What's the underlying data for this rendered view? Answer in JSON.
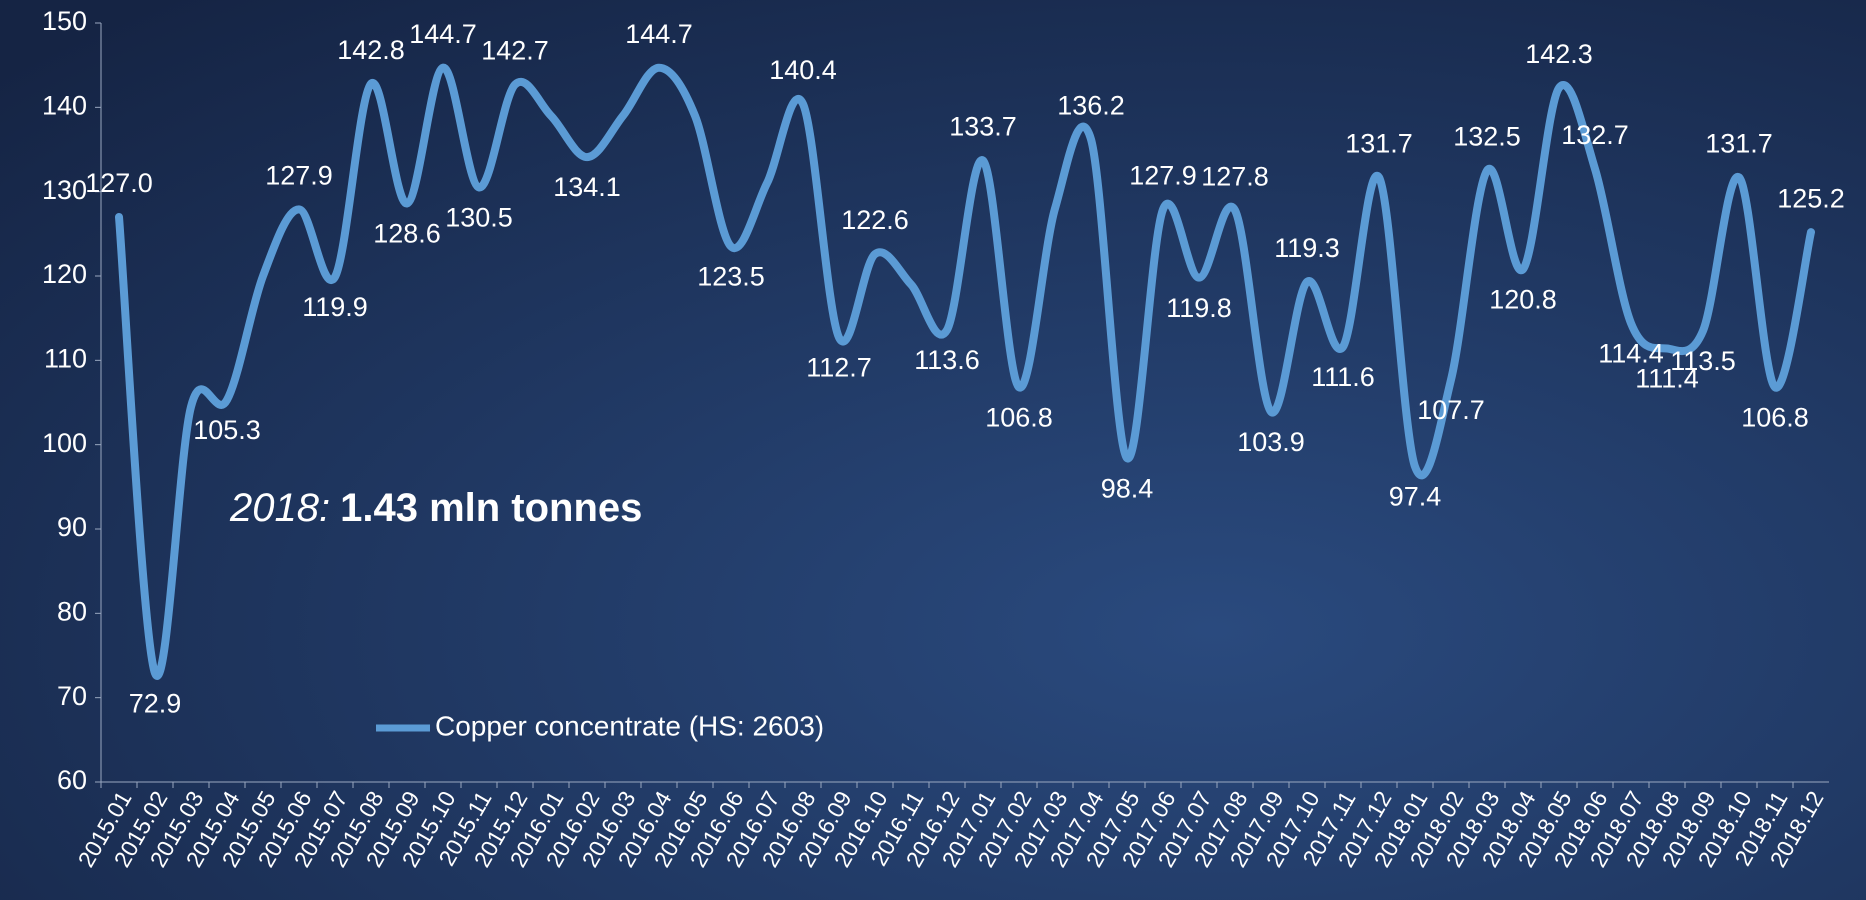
{
  "chart_data": {
    "type": "line",
    "categories": [
      "2015.01",
      "2015.02",
      "2015.03",
      "2015.04",
      "2015.05",
      "2015.06",
      "2015.07",
      "2015.08",
      "2015.09",
      "2015.10",
      "2015.11",
      "2015.12",
      "2016.01",
      "2016.02",
      "2016.03",
      "2016.04",
      "2016.05",
      "2016.06",
      "2016.07",
      "2016.08",
      "2016.09",
      "2016.10",
      "2016.11",
      "2016.12",
      "2017.01",
      "2017.02",
      "2017.03",
      "2017.04",
      "2017.05",
      "2017.06",
      "2017.07",
      "2017.08",
      "2017.09",
      "2017.10",
      "2017.11",
      "2017.12",
      "2018.01",
      "2018.02",
      "2018.03",
      "2018.04",
      "2018.05",
      "2018.06",
      "2018.07",
      "2018.08",
      "2018.09",
      "2018.10",
      "2018.11",
      "2018.12"
    ],
    "series": [
      {
        "name": "Copper concentrate (HS: 2603)",
        "color": "#5b9bd5",
        "values": [
          127.0,
          72.9,
          104.5,
          105.3,
          120,
          127.9,
          119.9,
          142.8,
          128.6,
          144.7,
          130.5,
          142.7,
          139,
          134.1,
          139,
          144.7,
          139,
          123.5,
          131,
          140.4,
          112.7,
          122.6,
          119,
          113.6,
          133.7,
          106.8,
          128,
          136.2,
          98.4,
          127.9,
          119.8,
          127.8,
          103.9,
          119.3,
          111.6,
          131.7,
          97.4,
          107.7,
          132.5,
          120.8,
          142.3,
          132.7,
          114.4,
          111.4,
          113.5,
          131.7,
          106.8,
          125.2
        ],
        "value_labels": [
          "127.0",
          "72.9",
          null,
          "105.3",
          null,
          "127.9",
          "119.9",
          "142.8",
          "128.6",
          "144.7",
          "130.5",
          "142.7",
          null,
          "134.1",
          null,
          "144.7",
          null,
          "123.5",
          null,
          "140.4",
          "112.7",
          "122.6",
          null,
          "113.6",
          "133.7",
          "106.8",
          null,
          "136.2",
          "98.4",
          "127.9",
          "119.8",
          "127.8",
          "103.9",
          "119.3",
          "111.6",
          "131.7",
          "97.4",
          "107.7",
          "132.5",
          "120.8",
          "142.3",
          "132.7",
          "114.4",
          "111.4",
          "113.5",
          "131.7",
          "106.8",
          "125.2"
        ]
      }
    ],
    "ylim": [
      60,
      150
    ],
    "yticks": [
      60,
      70,
      80,
      90,
      100,
      110,
      120,
      130,
      140,
      150
    ],
    "annotation": {
      "year": "2018:",
      "text": "1.43 mln tonnes"
    },
    "smooth": true
  }
}
